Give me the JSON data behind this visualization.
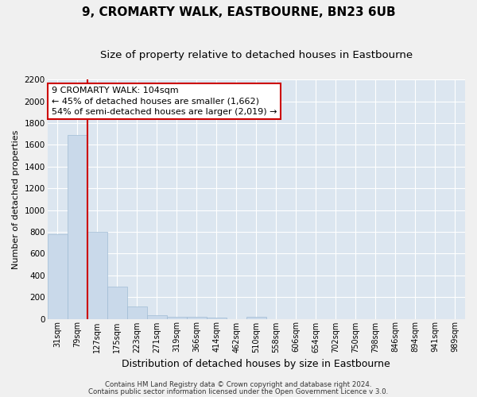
{
  "title": "9, CROMARTY WALK, EASTBOURNE, BN23 6UB",
  "subtitle": "Size of property relative to detached houses in Eastbourne",
  "xlabel": "Distribution of detached houses by size in Eastbourne",
  "ylabel": "Number of detached properties",
  "categories": [
    "31sqm",
    "79sqm",
    "127sqm",
    "175sqm",
    "223sqm",
    "271sqm",
    "319sqm",
    "366sqm",
    "414sqm",
    "462sqm",
    "510sqm",
    "558sqm",
    "606sqm",
    "654sqm",
    "702sqm",
    "750sqm",
    "798sqm",
    "846sqm",
    "894sqm",
    "941sqm",
    "989sqm"
  ],
  "values": [
    780,
    1690,
    800,
    295,
    113,
    33,
    22,
    17,
    13,
    0,
    20,
    0,
    0,
    0,
    0,
    0,
    0,
    0,
    0,
    0,
    0
  ],
  "bar_color": "#c9d9ea",
  "bar_edge_color": "#a0bcd4",
  "red_line_x": 1.5,
  "annotation_line1": "9 CROMARTY WALK: 104sqm",
  "annotation_line2": "← 45% of detached houses are smaller (1,662)",
  "annotation_line3": "54% of semi-detached houses are larger (2,019) →",
  "annotation_box_color": "#ffffff",
  "annotation_box_edge": "#cc0000",
  "red_line_color": "#cc0000",
  "ylim": [
    0,
    2200
  ],
  "yticks": [
    0,
    200,
    400,
    600,
    800,
    1000,
    1200,
    1400,
    1600,
    1800,
    2000,
    2200
  ],
  "background_color": "#dce6f0",
  "grid_color": "#ffffff",
  "footer1": "Contains HM Land Registry data © Crown copyright and database right 2024.",
  "footer2": "Contains public sector information licensed under the Open Government Licence v 3.0.",
  "title_fontsize": 11,
  "subtitle_fontsize": 9.5,
  "fig_bg": "#f0f0f0"
}
